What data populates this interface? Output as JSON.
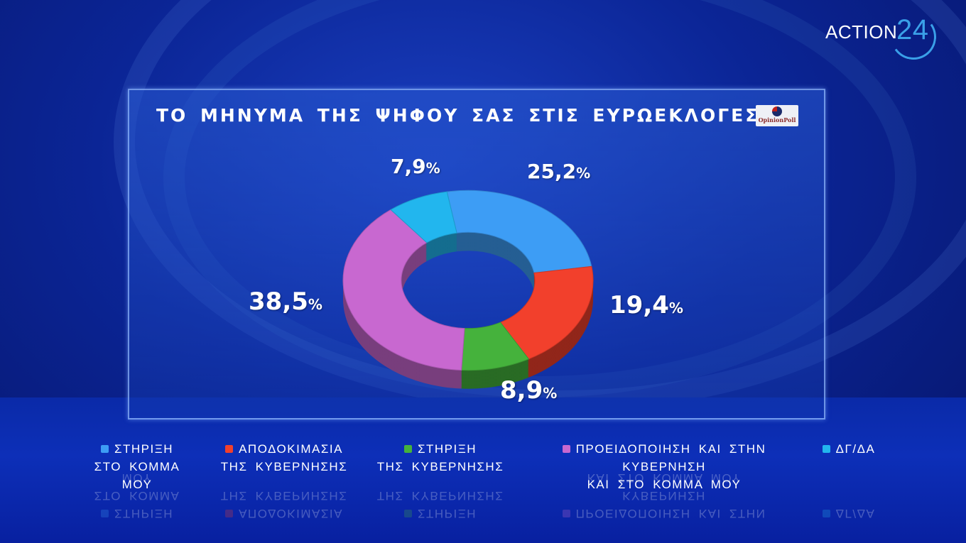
{
  "brand": {
    "name": "ACTION",
    "number": "24"
  },
  "title": "ΤΟ ΜΗΝΥΜΑ ΤΗΣ ΨΗΦΟΥ ΣΑΣ ΣΤΙΣ ΕΥΡΩΕΚΛΟΓΕΣ",
  "pollster_logo": "OpinionPoll",
  "chart_data": {
    "type": "pie",
    "donut": true,
    "title": "ΤΟ ΜΗΝΥΜΑ ΤΗΣ ΨΗΦΟΥ ΣΑΣ ΣΤΙΣ ΕΥΡΩΕΚΛΟΓΕΣ",
    "unit": "%",
    "legend_position": "bottom",
    "slices": [
      {
        "label": [
          "ΣΤΗΡΙΞΗ",
          "ΣΤΟ ΚΟΜΜΑ ΜΟΥ"
        ],
        "value": 25.2,
        "display": "25,2",
        "color": "#3d9df5"
      },
      {
        "label": [
          "ΑΠΟΔΟΚΙΜΑΣΙΑ",
          "ΤΗΣ ΚΥΒΕΡΝΗΣΗΣ"
        ],
        "value": 19.4,
        "display": "19,4",
        "color": "#f2402c"
      },
      {
        "label": [
          "ΣΤΗΡΙΞΗ",
          "ΤΗΣ ΚΥΒΕΡΝΗΣΗΣ"
        ],
        "value": 8.9,
        "display": "8,9",
        "color": "#45b23c"
      },
      {
        "label": [
          "ΠΡΟΕΙΔΟΠΟΙΗΣΗ ΚΑΙ ΣΤΗΝ ΚΥΒΕΡΝΗΣΗ",
          "ΚΑΙ ΣΤΟ ΚΟΜΜΑ ΜΟΥ"
        ],
        "value": 38.5,
        "display": "38,5",
        "color": "#c868d0"
      },
      {
        "label": [
          "ΔΓ/ΔΑ"
        ],
        "value": 7.9,
        "display": "7,9",
        "color": "#22b6ee"
      }
    ]
  }
}
